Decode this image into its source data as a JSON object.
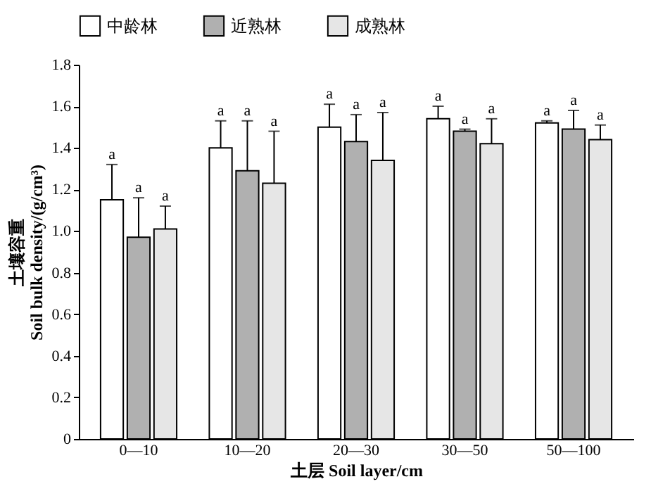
{
  "chart_data": {
    "type": "bar",
    "xlabel": "土层 Soil layer/cm",
    "ylabel": "土壤容重\nSoil bulk density/(g/cm³)",
    "categories": [
      "0—10",
      "10—20",
      "20—30",
      "30—50",
      "50—100"
    ],
    "series": [
      {
        "name": "中龄林",
        "color": "#ffffff",
        "values": [
          1.15,
          1.4,
          1.5,
          1.54,
          1.52
        ],
        "errors": [
          0.17,
          0.13,
          0.11,
          0.06,
          0.01
        ]
      },
      {
        "name": "近熟林",
        "color": "#b0b0b0",
        "values": [
          0.97,
          1.29,
          1.43,
          1.48,
          1.49
        ],
        "errors": [
          0.19,
          0.24,
          0.13,
          0.01,
          0.09
        ]
      },
      {
        "name": "成熟林",
        "color": "#e6e6e6",
        "values": [
          1.01,
          1.23,
          1.34,
          1.42,
          1.44
        ],
        "errors": [
          0.11,
          0.25,
          0.23,
          0.12,
          0.07
        ]
      }
    ],
    "ylim": [
      0,
      1.8
    ],
    "yticks": [
      0,
      0.2,
      0.4,
      0.6,
      0.8,
      {
        "value": 1,
        "label": "1.0"
      },
      1.2,
      1.4,
      1.6,
      1.8
    ],
    "annotations": [
      "a",
      "a",
      "a",
      "a",
      "a",
      "a",
      "a",
      "a",
      "a",
      "a",
      "a",
      "a",
      "a",
      "a",
      "a"
    ],
    "grid": false,
    "legend": "top"
  }
}
